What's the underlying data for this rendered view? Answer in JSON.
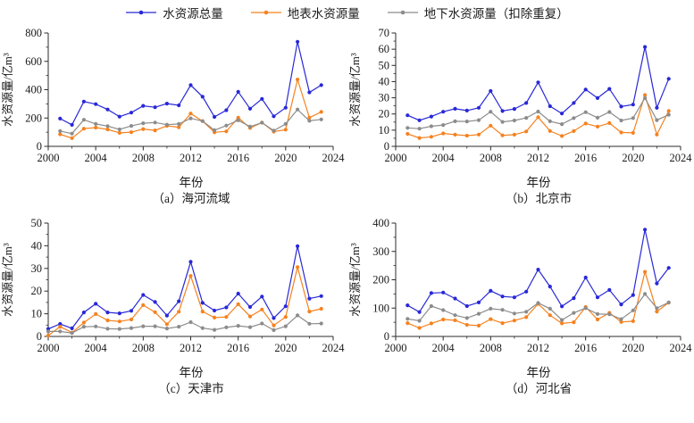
{
  "figure": {
    "legend": {
      "items": [
        {
          "name": "total",
          "label": "水资源总量",
          "color": "#2828d7"
        },
        {
          "name": "surface",
          "label": "地表水资源量",
          "color": "#f5821f"
        },
        {
          "name": "ground",
          "label": "地下水资源量（扣除重复）",
          "color": "#8c8c8c"
        }
      ],
      "position": "top-center"
    }
  },
  "chart_data": [
    {
      "type": "line",
      "title": "（a）海河流域",
      "xlabel": "年份",
      "ylabel": "水资源量/亿m³",
      "xlim": [
        2000,
        2024
      ],
      "xtick_step": 4,
      "ylim": [
        0,
        800
      ],
      "ytick_step": 200,
      "grid": false,
      "x": [
        2001,
        2002,
        2003,
        2004,
        2005,
        2006,
        2007,
        2008,
        2009,
        2010,
        2011,
        2012,
        2013,
        2014,
        2015,
        2016,
        2017,
        2018,
        2019,
        2020,
        2021,
        2022,
        2023
      ],
      "series": [
        {
          "name": "水资源总量",
          "color": "#2828d7",
          "values": [
            196,
            152,
            316,
            298,
            260,
            210,
            238,
            286,
            276,
            302,
            290,
            432,
            350,
            208,
            255,
            385,
            266,
            335,
            212,
            273,
            738,
            381,
            432
          ]
        },
        {
          "name": "地表水资源量",
          "color": "#f5821f",
          "values": [
            85,
            58,
            125,
            132,
            120,
            95,
            100,
            122,
            113,
            145,
            135,
            232,
            178,
            99,
            106,
            202,
            130,
            168,
            104,
            118,
            472,
            203,
            243
          ]
        },
        {
          "name": "地下水资源量（扣除重复）",
          "color": "#8c8c8c",
          "values": [
            108,
            90,
            188,
            158,
            143,
            120,
            144,
            163,
            168,
            153,
            158,
            198,
            178,
            114,
            147,
            184,
            139,
            167,
            111,
            158,
            260,
            180,
            190
          ]
        }
      ]
    },
    {
      "type": "line",
      "title": "（b）北京市",
      "xlabel": "年份",
      "ylabel": "水资源量/亿m³",
      "xlim": [
        2000,
        2024
      ],
      "xtick_step": 4,
      "ylim": [
        0,
        70
      ],
      "ytick_step": 10,
      "grid": false,
      "x": [
        2001,
        2002,
        2003,
        2004,
        2005,
        2006,
        2007,
        2008,
        2009,
        2010,
        2011,
        2012,
        2013,
        2014,
        2015,
        2016,
        2017,
        2018,
        2019,
        2020,
        2021,
        2022,
        2023
      ],
      "series": [
        {
          "name": "水资源总量",
          "color": "#2828d7",
          "values": [
            19.2,
            16.1,
            18.4,
            21.4,
            23.2,
            22.1,
            23.8,
            34.2,
            21.8,
            23.1,
            26.8,
            39.5,
            24.8,
            20.3,
            26.8,
            35.1,
            29.8,
            35.5,
            24.6,
            25.8,
            61.4,
            23.8,
            41.7
          ]
        },
        {
          "name": "地表水资源量",
          "color": "#f5821f",
          "values": [
            7.7,
            5.2,
            5.9,
            8.0,
            7.2,
            6.6,
            7.3,
            12.8,
            6.8,
            7.2,
            9.2,
            18.0,
            9.5,
            6.4,
            9.4,
            14.1,
            12.2,
            14.4,
            8.6,
            8.3,
            31.7,
            7.3,
            21.8
          ]
        },
        {
          "name": "地下水资源量（扣除重复）",
          "color": "#8c8c8c",
          "values": [
            11.4,
            10.9,
            12.4,
            13.2,
            15.5,
            15.4,
            16.2,
            21.4,
            15.1,
            16.0,
            17.6,
            21.5,
            15.5,
            13.7,
            17.5,
            21.1,
            17.7,
            21.2,
            16.0,
            17.5,
            29.9,
            16.2,
            19.5
          ]
        }
      ]
    },
    {
      "type": "line",
      "title": "（c）天津市",
      "xlabel": "年份",
      "ylabel": "水资源量/亿m³",
      "xlim": [
        2000,
        2024
      ],
      "xtick_step": 4,
      "ylim": [
        0,
        50
      ],
      "ytick_step": 10,
      "grid": false,
      "x": [
        2000,
        2001,
        2002,
        2003,
        2004,
        2005,
        2006,
        2007,
        2008,
        2009,
        2010,
        2011,
        2012,
        2013,
        2014,
        2015,
        2016,
        2017,
        2018,
        2019,
        2020,
        2021,
        2022,
        2023
      ],
      "series": [
        {
          "name": "水资源总量",
          "color": "#2828d7",
          "values": [
            3.3,
            5.5,
            3.6,
            10.6,
            14.4,
            10.6,
            10.2,
            11.3,
            18.3,
            15.2,
            9.2,
            15.5,
            32.9,
            14.8,
            11.4,
            12.8,
            18.9,
            13.0,
            17.6,
            8.1,
            13.3,
            39.8,
            16.7,
            17.8
          ]
        },
        {
          "name": "地表水资源量",
          "color": "#f5821f",
          "values": [
            0.4,
            4.3,
            1.7,
            6.1,
            9.9,
            7.1,
            6.6,
            7.5,
            13.8,
            10.7,
            5.4,
            10.9,
            26.7,
            11.0,
            8.3,
            8.6,
            14.2,
            8.8,
            11.9,
            4.9,
            8.6,
            30.6,
            11.0,
            12.2
          ]
        },
        {
          "name": "地下水资源量（扣除重复）",
          "color": "#8c8c8c",
          "values": [
            2.2,
            2.2,
            1.5,
            4.3,
            4.4,
            3.4,
            3.3,
            3.7,
            4.5,
            4.5,
            3.5,
            4.3,
            6.3,
            3.7,
            2.9,
            4.0,
            4.7,
            4.1,
            5.7,
            2.8,
            4.5,
            9.3,
            5.6,
            5.7
          ]
        }
      ]
    },
    {
      "type": "line",
      "title": "（d）河北省",
      "xlabel": "年份",
      "ylabel": "水资源量/亿m³",
      "xlim": [
        2000,
        2024
      ],
      "xtick_step": 4,
      "ylim": [
        0,
        400
      ],
      "ytick_step": 100,
      "grid": false,
      "x": [
        2001,
        2002,
        2003,
        2004,
        2005,
        2006,
        2007,
        2008,
        2009,
        2010,
        2011,
        2012,
        2013,
        2014,
        2015,
        2016,
        2017,
        2018,
        2019,
        2020,
        2021,
        2022,
        2023
      ],
      "series": [
        {
          "name": "水资源总量",
          "color": "#2828d7",
          "values": [
            110,
            86,
            153,
            155,
            134,
            107,
            120,
            161,
            141,
            138,
            158,
            236,
            176,
            106,
            135,
            208,
            138,
            164,
            113,
            146,
            377,
            187,
            242
          ]
        },
        {
          "name": "地表水资源量",
          "color": "#f5821f",
          "values": [
            47,
            30,
            46,
            60,
            57,
            41,
            38,
            61,
            47,
            56,
            68,
            115,
            75,
            46,
            50,
            104,
            60,
            83,
            51,
            54,
            228,
            88,
            119
          ]
        },
        {
          "name": "地下水资源量（扣除重复）",
          "color": "#8c8c8c",
          "values": [
            62,
            55,
            107,
            93,
            75,
            65,
            80,
            98,
            94,
            81,
            87,
            118,
            98,
            58,
            83,
            100,
            79,
            78,
            61,
            92,
            150,
            100,
            120
          ]
        }
      ]
    }
  ]
}
